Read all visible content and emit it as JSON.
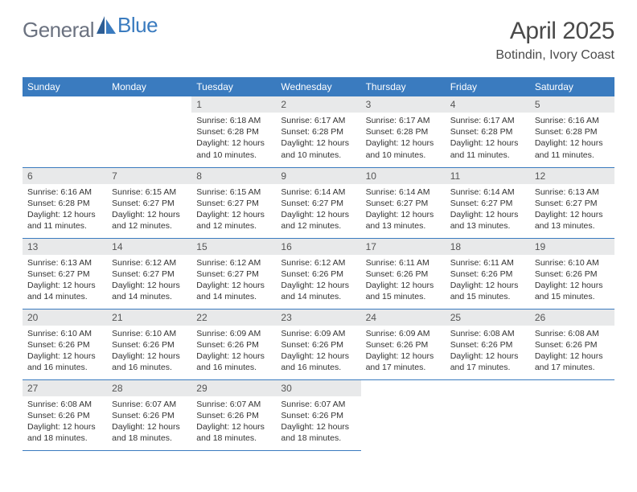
{
  "logo": {
    "text1": "General",
    "text2": "Blue"
  },
  "title": "April 2025",
  "subtitle": "Botindin, Ivory Coast",
  "colors": {
    "header_bg": "#3a7bbf",
    "header_fg": "#ffffff",
    "daynum_bg": "#e8e9ea",
    "cell_border": "#3a7bbf",
    "text": "#333333",
    "title_color": "#4a4a4a",
    "logo_gray": "#6b7280",
    "logo_blue": "#3a7bbf",
    "background": "#ffffff"
  },
  "weekdays": [
    "Sunday",
    "Monday",
    "Tuesday",
    "Wednesday",
    "Thursday",
    "Friday",
    "Saturday"
  ],
  "leading_blanks": 2,
  "days": [
    {
      "n": 1,
      "rise": "6:18 AM",
      "set": "6:28 PM",
      "dl": "12 hours and 10 minutes."
    },
    {
      "n": 2,
      "rise": "6:17 AM",
      "set": "6:28 PM",
      "dl": "12 hours and 10 minutes."
    },
    {
      "n": 3,
      "rise": "6:17 AM",
      "set": "6:28 PM",
      "dl": "12 hours and 10 minutes."
    },
    {
      "n": 4,
      "rise": "6:17 AM",
      "set": "6:28 PM",
      "dl": "12 hours and 11 minutes."
    },
    {
      "n": 5,
      "rise": "6:16 AM",
      "set": "6:28 PM",
      "dl": "12 hours and 11 minutes."
    },
    {
      "n": 6,
      "rise": "6:16 AM",
      "set": "6:28 PM",
      "dl": "12 hours and 11 minutes."
    },
    {
      "n": 7,
      "rise": "6:15 AM",
      "set": "6:27 PM",
      "dl": "12 hours and 12 minutes."
    },
    {
      "n": 8,
      "rise": "6:15 AM",
      "set": "6:27 PM",
      "dl": "12 hours and 12 minutes."
    },
    {
      "n": 9,
      "rise": "6:14 AM",
      "set": "6:27 PM",
      "dl": "12 hours and 12 minutes."
    },
    {
      "n": 10,
      "rise": "6:14 AM",
      "set": "6:27 PM",
      "dl": "12 hours and 13 minutes."
    },
    {
      "n": 11,
      "rise": "6:14 AM",
      "set": "6:27 PM",
      "dl": "12 hours and 13 minutes."
    },
    {
      "n": 12,
      "rise": "6:13 AM",
      "set": "6:27 PM",
      "dl": "12 hours and 13 minutes."
    },
    {
      "n": 13,
      "rise": "6:13 AM",
      "set": "6:27 PM",
      "dl": "12 hours and 14 minutes."
    },
    {
      "n": 14,
      "rise": "6:12 AM",
      "set": "6:27 PM",
      "dl": "12 hours and 14 minutes."
    },
    {
      "n": 15,
      "rise": "6:12 AM",
      "set": "6:27 PM",
      "dl": "12 hours and 14 minutes."
    },
    {
      "n": 16,
      "rise": "6:12 AM",
      "set": "6:26 PM",
      "dl": "12 hours and 14 minutes."
    },
    {
      "n": 17,
      "rise": "6:11 AM",
      "set": "6:26 PM",
      "dl": "12 hours and 15 minutes."
    },
    {
      "n": 18,
      "rise": "6:11 AM",
      "set": "6:26 PM",
      "dl": "12 hours and 15 minutes."
    },
    {
      "n": 19,
      "rise": "6:10 AM",
      "set": "6:26 PM",
      "dl": "12 hours and 15 minutes."
    },
    {
      "n": 20,
      "rise": "6:10 AM",
      "set": "6:26 PM",
      "dl": "12 hours and 16 minutes."
    },
    {
      "n": 21,
      "rise": "6:10 AM",
      "set": "6:26 PM",
      "dl": "12 hours and 16 minutes."
    },
    {
      "n": 22,
      "rise": "6:09 AM",
      "set": "6:26 PM",
      "dl": "12 hours and 16 minutes."
    },
    {
      "n": 23,
      "rise": "6:09 AM",
      "set": "6:26 PM",
      "dl": "12 hours and 16 minutes."
    },
    {
      "n": 24,
      "rise": "6:09 AM",
      "set": "6:26 PM",
      "dl": "12 hours and 17 minutes."
    },
    {
      "n": 25,
      "rise": "6:08 AM",
      "set": "6:26 PM",
      "dl": "12 hours and 17 minutes."
    },
    {
      "n": 26,
      "rise": "6:08 AM",
      "set": "6:26 PM",
      "dl": "12 hours and 17 minutes."
    },
    {
      "n": 27,
      "rise": "6:08 AM",
      "set": "6:26 PM",
      "dl": "12 hours and 18 minutes."
    },
    {
      "n": 28,
      "rise": "6:07 AM",
      "set": "6:26 PM",
      "dl": "12 hours and 18 minutes."
    },
    {
      "n": 29,
      "rise": "6:07 AM",
      "set": "6:26 PM",
      "dl": "12 hours and 18 minutes."
    },
    {
      "n": 30,
      "rise": "6:07 AM",
      "set": "6:26 PM",
      "dl": "12 hours and 18 minutes."
    }
  ],
  "labels": {
    "sunrise": "Sunrise:",
    "sunset": "Sunset:",
    "daylight": "Daylight:"
  }
}
